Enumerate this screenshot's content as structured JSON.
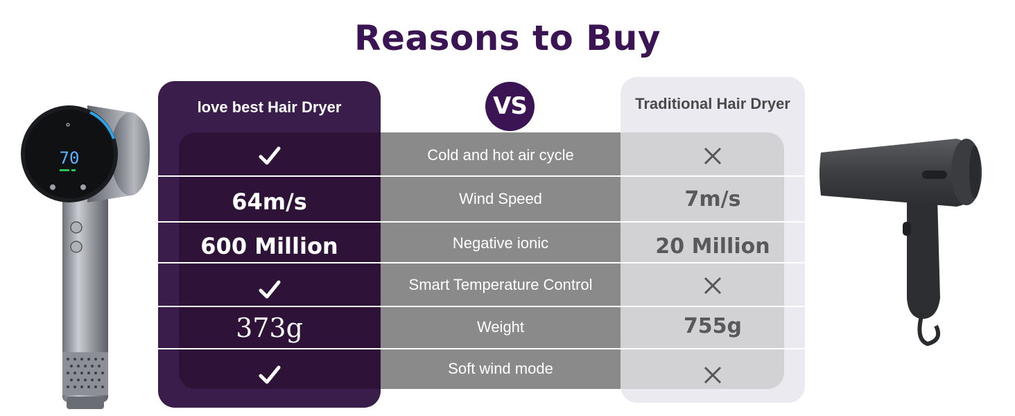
{
  "title": "Reasons to Buy",
  "vs_label": "VS",
  "columns": {
    "brand": "love best Hair Dryer",
    "traditional": "Traditional Hair Dryer"
  },
  "rows": [
    {
      "feature": "Cold and hot air cycle",
      "brand": "check-icon",
      "traditional": "cross-icon"
    },
    {
      "feature": "Wind Speed",
      "brand": "64m/s",
      "traditional": "7m/s"
    },
    {
      "feature": "Negative ionic",
      "brand": "600 Million",
      "traditional": "20 Million"
    },
    {
      "feature": "Smart Temperature Control",
      "brand": "check-icon",
      "traditional": "cross-icon"
    },
    {
      "feature": "Weight",
      "brand": "373g",
      "traditional": "755g"
    },
    {
      "feature": "Soft wind mode",
      "brand": "check-icon",
      "traditional": "cross-icon"
    }
  ],
  "product_display": "70",
  "colors": {
    "title": "#3b1553",
    "brand_column": "#3a1d4a",
    "feature_column": "#8a8a8a",
    "traditional_column": "#ebeaf0"
  }
}
